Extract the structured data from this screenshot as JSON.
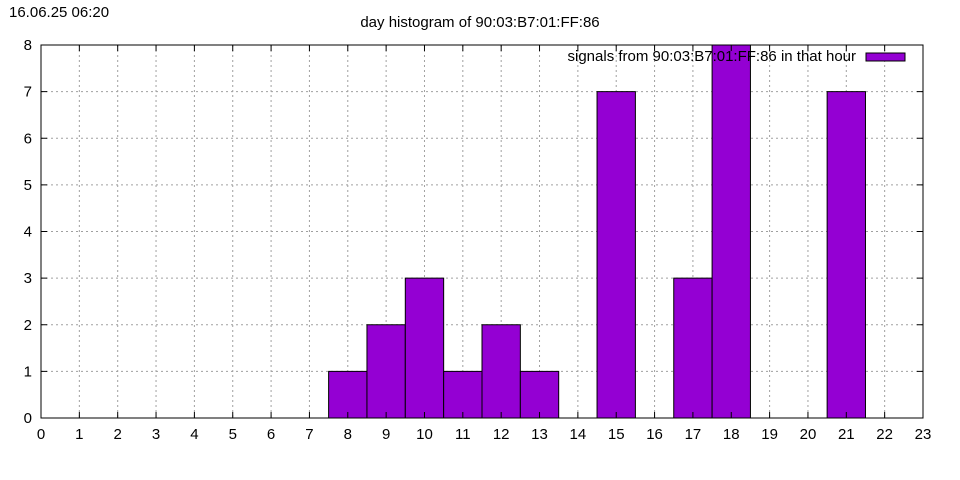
{
  "timestamp": "16.06.25 06:20",
  "chart_data": {
    "type": "bar",
    "title": "day histogram of 90:03:B7:01:FF:86",
    "xlabel": "",
    "ylabel": "",
    "xlim": [
      0,
      23
    ],
    "ylim": [
      0,
      8
    ],
    "x_ticks": [
      "0",
      "1",
      "2",
      "3",
      "4",
      "5",
      "6",
      "7",
      "8",
      "9",
      "10",
      "11",
      "12",
      "13",
      "14",
      "15",
      "16",
      "17",
      "18",
      "19",
      "20",
      "21",
      "22",
      "23"
    ],
    "y_ticks": [
      "0",
      "1",
      "2",
      "3",
      "4",
      "5",
      "6",
      "7",
      "8"
    ],
    "grid": true,
    "legend_position": "top-right",
    "bar_color": "#9400d3",
    "series": [
      {
        "name": "signals from 90:03:B7:01:FF:86 in that hour",
        "x": [
          8,
          9,
          10,
          11,
          12,
          13,
          15,
          17,
          18,
          21
        ],
        "values": [
          1,
          2,
          3,
          1,
          2,
          1,
          7,
          3,
          8,
          7
        ]
      }
    ]
  }
}
